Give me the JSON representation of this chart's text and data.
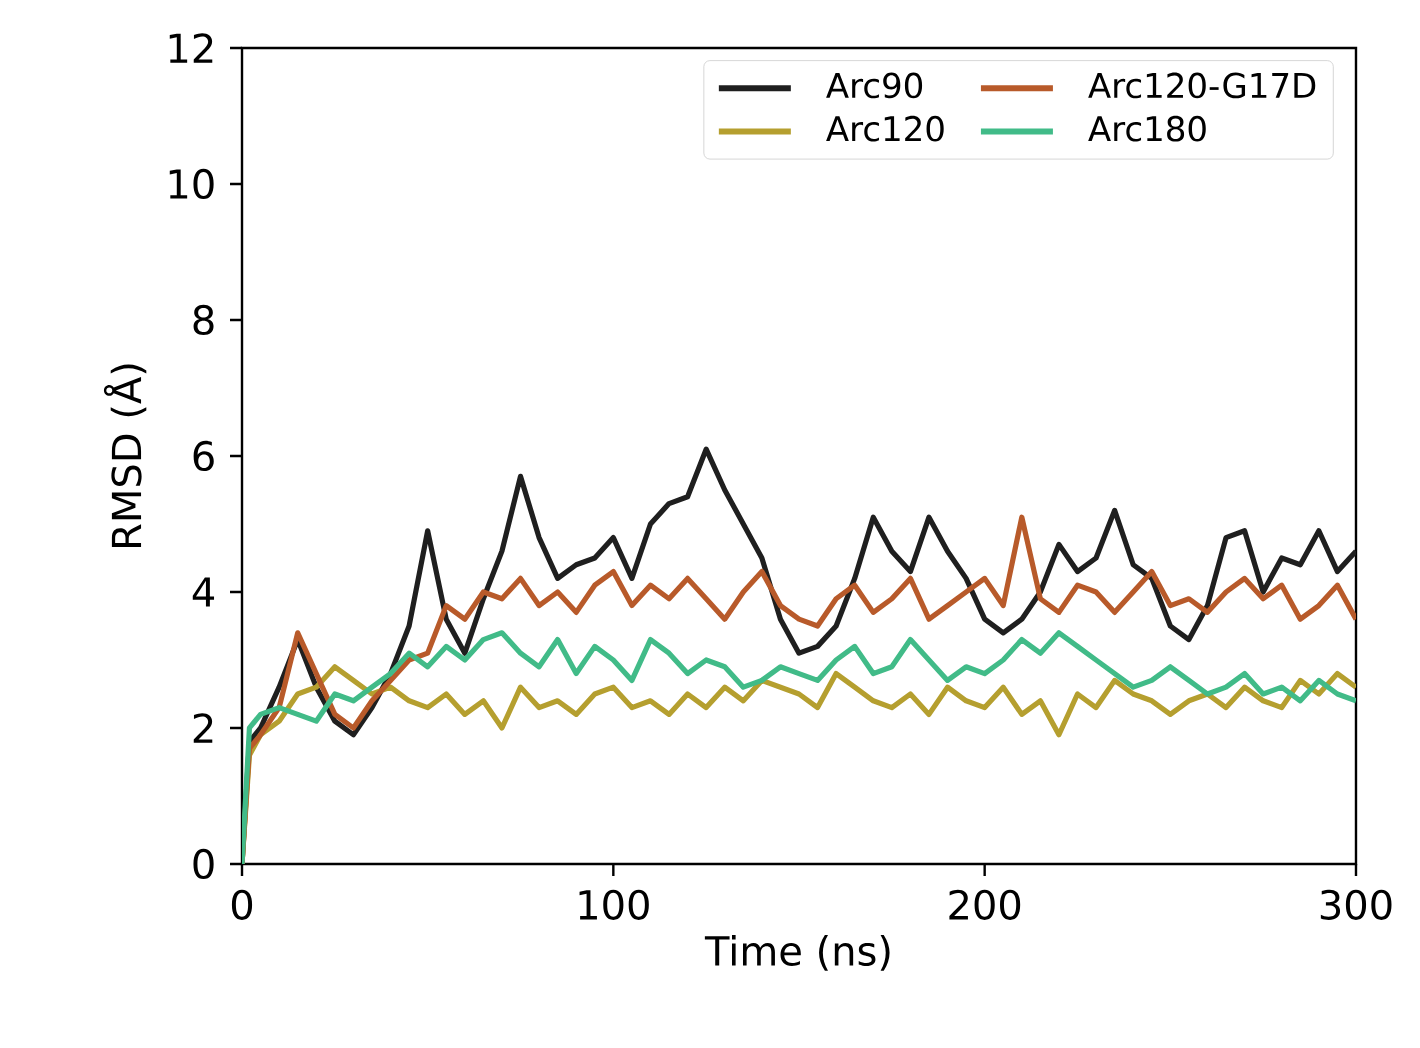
{
  "chart_data": {
    "type": "line",
    "xlabel": "Time (ns)",
    "ylabel": "RMSD (Å)",
    "x": [
      0,
      2,
      5,
      10,
      15,
      20,
      25,
      30,
      35,
      40,
      45,
      50,
      55,
      60,
      65,
      70,
      75,
      80,
      85,
      90,
      95,
      100,
      105,
      110,
      115,
      120,
      125,
      130,
      135,
      140,
      145,
      150,
      155,
      160,
      165,
      170,
      175,
      180,
      185,
      190,
      195,
      200,
      205,
      210,
      215,
      220,
      225,
      230,
      235,
      240,
      245,
      250,
      255,
      260,
      265,
      270,
      275,
      280,
      285,
      290,
      295,
      300
    ],
    "series": [
      {
        "name": "Arc90",
        "color": "#1f1f1f",
        "values": [
          0,
          1.8,
          2.0,
          2.6,
          3.3,
          2.6,
          2.1,
          1.9,
          2.3,
          2.8,
          3.5,
          4.9,
          3.6,
          3.1,
          3.9,
          4.6,
          5.7,
          4.8,
          4.2,
          4.4,
          4.5,
          4.8,
          4.2,
          5.0,
          5.3,
          5.4,
          6.1,
          5.5,
          5.0,
          4.5,
          3.6,
          3.1,
          3.2,
          3.5,
          4.2,
          5.1,
          4.6,
          4.3,
          5.1,
          4.6,
          4.2,
          3.6,
          3.4,
          3.6,
          4.0,
          4.7,
          4.3,
          4.5,
          5.2,
          4.4,
          4.2,
          3.5,
          3.3,
          3.8,
          4.8,
          4.9,
          4.0,
          4.5,
          4.4,
          4.9,
          4.3,
          4.6
        ]
      },
      {
        "name": "Arc120",
        "color": "#b59f2f",
        "values": [
          0,
          1.6,
          1.9,
          2.1,
          2.5,
          2.6,
          2.9,
          2.7,
          2.5,
          2.6,
          2.4,
          2.3,
          2.5,
          2.2,
          2.4,
          2.0,
          2.6,
          2.3,
          2.4,
          2.2,
          2.5,
          2.6,
          2.3,
          2.4,
          2.2,
          2.5,
          2.3,
          2.6,
          2.4,
          2.7,
          2.6,
          2.5,
          2.3,
          2.8,
          2.6,
          2.4,
          2.3,
          2.5,
          2.2,
          2.6,
          2.4,
          2.3,
          2.6,
          2.2,
          2.4,
          1.9,
          2.5,
          2.3,
          2.7,
          2.5,
          2.4,
          2.2,
          2.4,
          2.5,
          2.3,
          2.6,
          2.4,
          2.3,
          2.7,
          2.5,
          2.8,
          2.6
        ]
      },
      {
        "name": "Arc120-G17D",
        "color": "#b85a2a",
        "values": [
          0,
          1.7,
          1.9,
          2.3,
          3.4,
          2.8,
          2.2,
          2.0,
          2.4,
          2.7,
          3.0,
          3.1,
          3.8,
          3.6,
          4.0,
          3.9,
          4.2,
          3.8,
          4.0,
          3.7,
          4.1,
          4.3,
          3.8,
          4.1,
          3.9,
          4.2,
          3.9,
          3.6,
          4.0,
          4.3,
          3.8,
          3.6,
          3.5,
          3.9,
          4.1,
          3.7,
          3.9,
          4.2,
          3.6,
          3.8,
          4.0,
          4.2,
          3.8,
          5.1,
          3.9,
          3.7,
          4.1,
          4.0,
          3.7,
          4.0,
          4.3,
          3.8,
          3.9,
          3.7,
          4.0,
          4.2,
          3.9,
          4.1,
          3.6,
          3.8,
          4.1,
          3.6
        ]
      },
      {
        "name": "Arc180",
        "color": "#41bb88",
        "values": [
          0,
          2.0,
          2.2,
          2.3,
          2.2,
          2.1,
          2.5,
          2.4,
          2.6,
          2.8,
          3.1,
          2.9,
          3.2,
          3.0,
          3.3,
          3.4,
          3.1,
          2.9,
          3.3,
          2.8,
          3.2,
          3.0,
          2.7,
          3.3,
          3.1,
          2.8,
          3.0,
          2.9,
          2.6,
          2.7,
          2.9,
          2.8,
          2.7,
          3.0,
          3.2,
          2.8,
          2.9,
          3.3,
          3.0,
          2.7,
          2.9,
          2.8,
          3.0,
          3.3,
          3.1,
          3.4,
          3.2,
          3.0,
          2.8,
          2.6,
          2.7,
          2.9,
          2.7,
          2.5,
          2.6,
          2.8,
          2.5,
          2.6,
          2.4,
          2.7,
          2.5,
          2.4
        ]
      }
    ],
    "xlim": [
      0,
      300
    ],
    "ylim": [
      0,
      12
    ],
    "xticks": [
      0,
      100,
      200,
      300
    ],
    "yticks": [
      0,
      2,
      4,
      6,
      8,
      10,
      12
    ],
    "legend": "top right",
    "grid": false,
    "marker": "none",
    "line_style": "solid"
  }
}
